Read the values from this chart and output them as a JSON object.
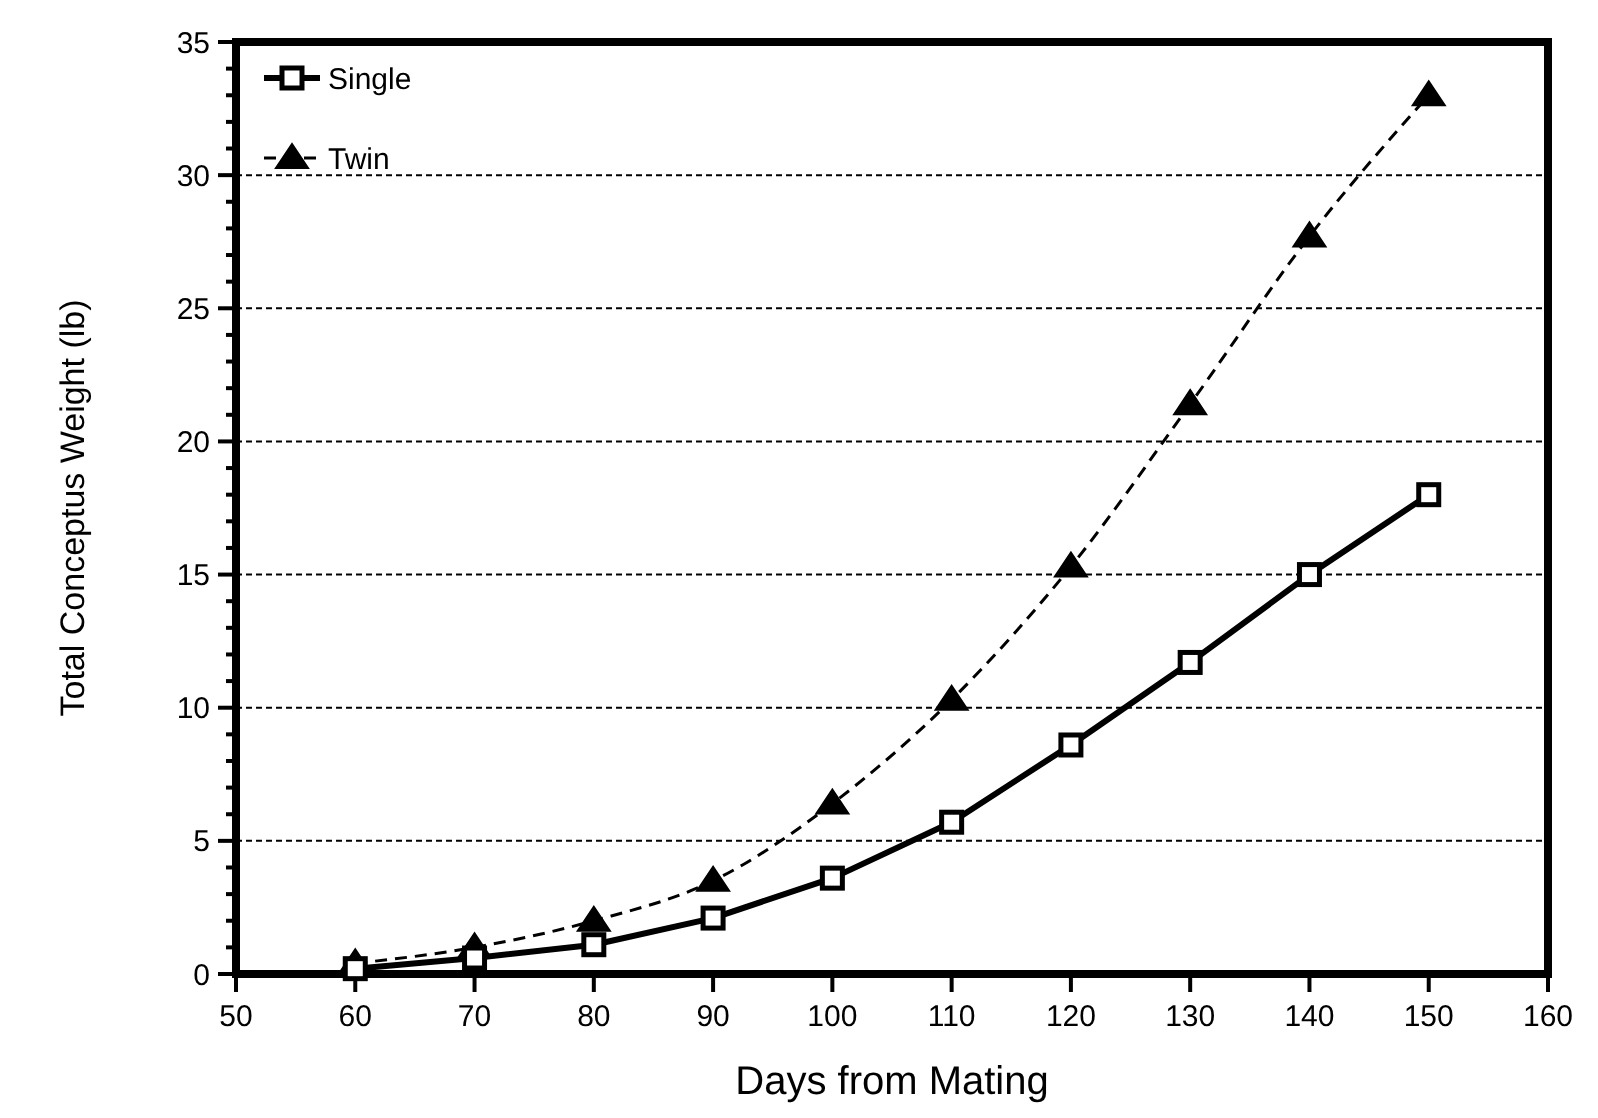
{
  "chart_data": {
    "type": "line",
    "xlabel": "Days from Mating",
    "ylabel": "Total Conceptus Weight (lb)",
    "x": [
      60,
      70,
      80,
      90,
      100,
      110,
      120,
      130,
      140,
      150
    ],
    "series": [
      {
        "name": "Single",
        "color": "#000000",
        "marker": "square",
        "line_style": "solid",
        "values": [
          0.2,
          0.6,
          1.1,
          2.1,
          3.6,
          5.7,
          8.6,
          11.7,
          15.0,
          18.0
        ]
      },
      {
        "name": "Twin",
        "color": "#000000",
        "marker": "triangle",
        "line_style": "dashed",
        "values": [
          0.4,
          1.0,
          2.0,
          3.5,
          6.4,
          10.3,
          15.3,
          21.4,
          27.7,
          33.0
        ]
      }
    ],
    "xlim": [
      50,
      160
    ],
    "xticks": [
      50,
      60,
      70,
      80,
      90,
      100,
      110,
      120,
      130,
      140,
      150,
      160
    ],
    "ylim": [
      0,
      35
    ],
    "yticks": [
      0,
      5,
      10,
      15,
      20,
      25,
      30,
      35
    ],
    "grid": "y",
    "legend": "top left"
  }
}
